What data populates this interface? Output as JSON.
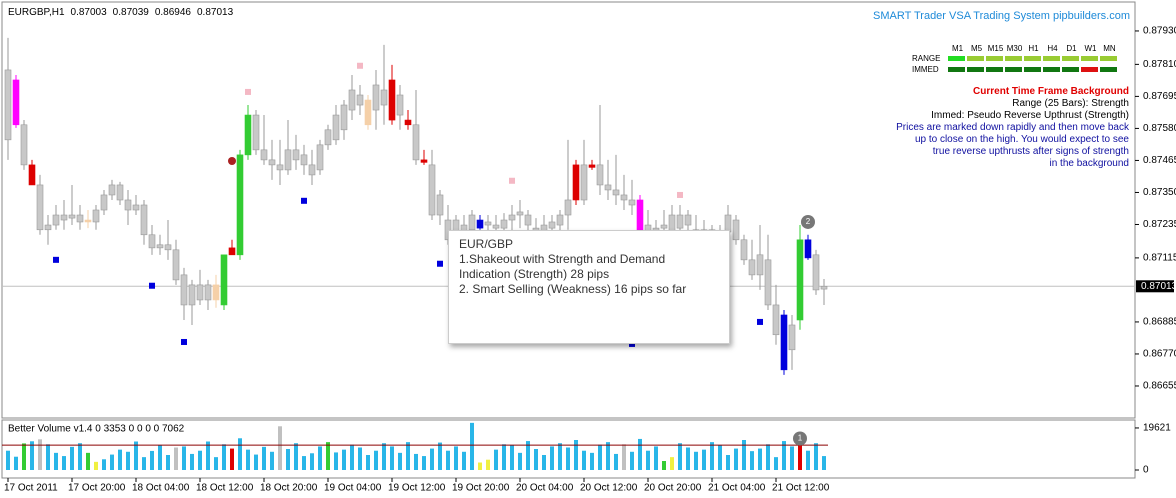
{
  "chart_data": [
    {
      "type": "candlestick",
      "title": "EURGBP,H1",
      "categories": [
        "17 Oct 2011",
        null,
        null,
        null,
        null,
        null,
        null,
        null,
        "17 Oct 20:00",
        null,
        null,
        null,
        null,
        null,
        null,
        null,
        "18 Oct 04:00",
        null,
        null,
        null,
        null,
        null,
        null,
        null,
        "18 Oct 12:00",
        null,
        null,
        null,
        null,
        null,
        null,
        null,
        "18 Oct 20:00",
        null,
        null,
        null,
        null,
        null,
        null,
        null,
        "19 Oct 04:00",
        null,
        null,
        null,
        null,
        null,
        null,
        null,
        "19 Oct 12:00",
        null,
        null,
        null,
        null,
        null,
        null,
        null,
        "19 Oct 20:00",
        null,
        null,
        null,
        null,
        null,
        null,
        null,
        "20 Oct 04:00",
        null,
        null,
        null,
        null,
        null,
        null,
        null,
        "20 Oct 12:00",
        null,
        null,
        null,
        null,
        null,
        null,
        null,
        "20 Oct 20:00",
        null,
        null,
        null,
        null,
        null,
        null,
        null,
        "21 Oct 04:00",
        null,
        null,
        null,
        null,
        null,
        null,
        null,
        "21 Oct 12:00",
        null,
        null,
        null,
        null,
        null,
        null
      ],
      "candles": [
        [
          0.8779,
          0.87905,
          0.87467,
          0.87539
        ],
        [
          0.87754,
          0.87772,
          0.87582,
          0.87593
        ],
        [
          0.87593,
          0.8761,
          0.87431,
          0.87449
        ],
        [
          0.87449,
          0.87467,
          0.87377,
          0.87377
        ],
        [
          0.87377,
          0.87413,
          0.87198,
          0.87216
        ],
        [
          0.87216,
          0.87269,
          0.87162,
          0.87233
        ],
        [
          0.87233,
          0.87305,
          0.87216,
          0.87269
        ],
        [
          0.87269,
          0.87323,
          0.87216,
          0.87251
        ],
        [
          0.87258,
          0.87377,
          0.87233,
          0.87269
        ],
        [
          0.87269,
          0.87305,
          0.87216,
          0.87244
        ],
        [
          0.87251,
          0.87287,
          0.87222,
          0.87244
        ],
        [
          0.87244,
          0.87305,
          0.87216,
          0.87287
        ],
        [
          0.87287,
          0.87359,
          0.87269,
          0.87341
        ],
        [
          0.87341,
          0.87395,
          0.87323,
          0.87377
        ],
        [
          0.87377,
          0.87388,
          0.87305,
          0.87323
        ],
        [
          0.87323,
          0.87359,
          0.87233,
          0.87287
        ],
        [
          0.87287,
          0.87341,
          0.87269,
          0.87305
        ],
        [
          0.87305,
          0.87323,
          0.87162,
          0.87198
        ],
        [
          0.87198,
          0.87233,
          0.87126,
          0.87151
        ],
        [
          0.87151,
          0.87198,
          0.87126,
          0.87162
        ],
        [
          0.87162,
          0.87251,
          0.87108,
          0.87144
        ],
        [
          0.87144,
          0.8718,
          0.87018,
          0.87036
        ],
        [
          0.87054,
          0.87079,
          0.86892,
          0.86946
        ],
        [
          0.86946,
          0.87036,
          0.86874,
          0.87018
        ],
        [
          0.87018,
          0.87072,
          0.86946,
          0.86964
        ],
        [
          0.86964,
          0.87036,
          0.86928,
          0.87018
        ],
        [
          0.87018,
          0.87054,
          0.86936,
          0.86964
        ],
        [
          0.86946,
          0.87126,
          0.86928,
          0.87126
        ],
        [
          0.87151,
          0.8718,
          0.87126,
          0.87126
        ],
        [
          0.87126,
          0.87503,
          0.87108,
          0.87485
        ],
        [
          0.87485,
          0.87664,
          0.87467,
          0.87628
        ],
        [
          0.87628,
          0.87646,
          0.87485,
          0.87503
        ],
        [
          0.87503,
          0.87628,
          0.87449,
          0.87467
        ],
        [
          0.87467,
          0.87539,
          0.87395,
          0.87449
        ],
        [
          0.87449,
          0.87539,
          0.87377,
          0.87431
        ],
        [
          0.87431,
          0.8761,
          0.87413,
          0.87503
        ],
        [
          0.87503,
          0.87557,
          0.87431,
          0.87467
        ],
        [
          0.87449,
          0.87521,
          0.87413,
          0.87485
        ],
        [
          0.87449,
          0.87503,
          0.87377,
          0.87413
        ],
        [
          0.87431,
          0.87539,
          0.87413,
          0.87521
        ],
        [
          0.87521,
          0.87593,
          0.87503,
          0.87575
        ],
        [
          0.87539,
          0.87664,
          0.87521,
          0.87628
        ],
        [
          0.87575,
          0.87682,
          0.87539,
          0.87664
        ],
        [
          0.87646,
          0.87772,
          0.8761,
          0.87718
        ],
        [
          0.877,
          0.87736,
          0.87628,
          0.87664
        ],
        [
          0.87682,
          0.877,
          0.87575,
          0.87593
        ],
        [
          0.87646,
          0.8779,
          0.87575,
          0.87736
        ],
        [
          0.87718,
          0.8788,
          0.87593,
          0.87664
        ],
        [
          0.87754,
          0.87808,
          0.87593,
          0.8761
        ],
        [
          0.87628,
          0.87736,
          0.87575,
          0.877
        ],
        [
          0.8761,
          0.87646,
          0.87575,
          0.87593
        ],
        [
          0.87593,
          0.87718,
          0.87449,
          0.87467
        ],
        [
          0.87467,
          0.87503,
          0.87449,
          0.87458
        ],
        [
          0.87449,
          0.87503,
          0.87251,
          0.87269
        ],
        [
          0.87269,
          0.87359,
          0.87233,
          0.87341
        ],
        [
          0.87251,
          0.87305,
          0.87162,
          0.8718
        ],
        [
          0.8718,
          0.87269,
          0.87162,
          0.87251
        ],
        [
          0.87233,
          0.87269,
          0.87162,
          0.8718
        ],
        [
          0.87216,
          0.87287,
          0.87162,
          0.87269
        ],
        [
          0.87251,
          0.87269,
          0.87216,
          0.87222
        ],
        [
          0.87233,
          0.87269,
          0.87198,
          0.87244
        ],
        [
          0.87222,
          0.87269,
          0.8718,
          0.87233
        ],
        [
          0.87222,
          0.87276,
          0.8718,
          0.87251
        ],
        [
          0.87251,
          0.87305,
          0.87198,
          0.87269
        ],
        [
          0.87269,
          0.87323,
          0.87222,
          0.8728
        ],
        [
          0.87269,
          0.87287,
          0.87198,
          0.87233
        ],
        [
          0.87222,
          0.87258,
          0.8718,
          0.87208
        ],
        [
          0.87233,
          0.87269,
          0.8718,
          0.87208
        ],
        [
          0.87222,
          0.87269,
          0.87187,
          0.87244
        ],
        [
          0.87233,
          0.87287,
          0.87198,
          0.87269
        ],
        [
          0.87269,
          0.87539,
          0.87216,
          0.87323
        ],
        [
          0.87449,
          0.87467,
          0.87305,
          0.87323
        ],
        [
          0.87323,
          0.87539,
          0.87305,
          0.87449
        ],
        [
          0.87449,
          0.87467,
          0.87431,
          0.8744
        ],
        [
          0.87449,
          0.87664,
          0.87341,
          0.87377
        ],
        [
          0.87377,
          0.87467,
          0.87323,
          0.87359
        ],
        [
          0.87359,
          0.87485,
          0.87305,
          0.87341
        ],
        [
          0.87341,
          0.87413,
          0.87287,
          0.87323
        ],
        [
          0.87323,
          0.87395,
          0.87269,
          0.87305
        ],
        [
          0.87323,
          0.87341,
          0.87198,
          0.87216
        ],
        [
          0.87233,
          0.87287,
          0.8718,
          0.87198
        ],
        [
          0.87198,
          0.87251,
          0.87144,
          0.87222
        ],
        [
          0.87222,
          0.87287,
          0.8718,
          0.87233
        ],
        [
          0.87208,
          0.87305,
          0.8718,
          0.87269
        ],
        [
          0.87269,
          0.87305,
          0.87198,
          0.87222
        ],
        [
          0.87233,
          0.87287,
          0.8718,
          0.87269
        ],
        [
          0.87216,
          0.87269,
          0.87144,
          0.8718
        ],
        [
          0.8718,
          0.87251,
          0.87126,
          0.87216
        ],
        [
          0.87216,
          0.87233,
          0.87108,
          0.87126
        ],
        [
          0.87126,
          0.87233,
          0.87101,
          0.87198
        ],
        [
          0.87208,
          0.87305,
          0.8718,
          0.87269
        ],
        [
          0.87251,
          0.87269,
          0.87162,
          0.8718
        ],
        [
          0.8718,
          0.87198,
          0.8709,
          0.87108
        ],
        [
          0.87108,
          0.8718,
          0.87036,
          0.87054
        ],
        [
          0.87054,
          0.87233,
          0.87,
          0.87126
        ],
        [
          0.87108,
          0.87198,
          0.86928,
          0.86946
        ],
        [
          0.86946,
          0.87018,
          0.86803,
          0.86839
        ],
        [
          0.8691,
          0.86928,
          0.86695,
          0.86713
        ],
        [
          0.86785,
          0.8691,
          0.86713,
          0.86874
        ],
        [
          0.86892,
          0.87233,
          0.86857,
          0.8718
        ],
        [
          0.8718,
          0.87198,
          0.87108,
          0.87115
        ],
        [
          0.87126,
          0.87144,
          0.86982,
          0.87
        ],
        [
          0.87003,
          0.87039,
          0.86946,
          0.87013
        ]
      ],
      "color": "#c8c8c8",
      "highlights": {
        "1": "#ff00ff",
        "3": "#dd0000",
        "10": "#f5d0a8",
        "26": "#f5d0a8",
        "27": "#33cc33",
        "28": "#dd0000",
        "29": "#33cc33",
        "30": "#33cc33",
        "45": "#f5d0a8",
        "48": "#dd0000",
        "50": "#dd0000",
        "52": "#dd0000",
        "59": "#0000dd",
        "71": "#dd0000",
        "73": "#dd0000",
        "79": "#ff00ff",
        "97": "#0000dd",
        "99": "#33cc33",
        "100": "#0000dd"
      },
      "ylim": [
        0.8654,
        0.88034
      ],
      "yticks": [
        {
          "value": 0.8793,
          "label": "0.87930"
        },
        {
          "value": 0.8781,
          "label": "0.87810"
        },
        {
          "value": 0.87695,
          "label": "0.87695"
        },
        {
          "value": 0.8758,
          "label": "0.87580"
        },
        {
          "value": 0.87465,
          "label": "0.87465"
        },
        {
          "value": 0.8735,
          "label": "0.87350"
        },
        {
          "value": 0.87235,
          "label": "0.87235"
        },
        {
          "value": 0.87115,
          "label": "0.87115"
        },
        {
          "value": 0.86885,
          "label": "0.86885"
        },
        {
          "value": 0.8677,
          "label": "0.86770"
        },
        {
          "value": 0.86655,
          "label": "0.86655"
        }
      ],
      "current_price": {
        "value": 0.87013,
        "label": "0.87013"
      },
      "markers": [
        {
          "at": 6,
          "value": 0.87108,
          "color": "#0000dd"
        },
        {
          "at": 18,
          "value": 0.87015,
          "color": "#0000dd"
        },
        {
          "at": 22,
          "value": 0.86813,
          "color": "#0000dd"
        },
        {
          "at": 37,
          "value": 0.8732,
          "color": "#0000dd"
        },
        {
          "at": 54,
          "value": 0.87094,
          "color": "#0000dd"
        },
        {
          "at": 78,
          "value": 0.86806,
          "color": "#0000dd"
        },
        {
          "at": 94,
          "value": 0.86885,
          "color": "#0000dd"
        },
        {
          "at": 30,
          "value": 0.87711,
          "color": "#f4b8c4"
        },
        {
          "at": 44,
          "value": 0.87805,
          "color": "#f4b8c4"
        },
        {
          "at": 63,
          "value": 0.87392,
          "color": "#f4b8c4"
        },
        {
          "at": 84,
          "value": 0.87341,
          "color": "#f4b8c4"
        },
        {
          "at": 28,
          "value": 0.87463,
          "color": "#aa2222",
          "shape": "circle"
        }
      ],
      "annotations": [
        {
          "at": 100,
          "value": 0.87244,
          "label": "2"
        }
      ]
    },
    {
      "type": "bar",
      "title": "Better Volume v1.4 0 3353 0 0 0 0 7062",
      "values": [
        9000,
        6200,
        12400,
        13400,
        14300,
        12000,
        8000,
        6500,
        10800,
        12500,
        8000,
        3800,
        5000,
        7200,
        9500,
        8500,
        13300,
        6000,
        8900,
        11500,
        7000,
        10500,
        11000,
        7500,
        9000,
        13300,
        6000,
        12000,
        10000,
        14800,
        9500,
        7200,
        10800,
        8500,
        20400,
        9800,
        12500,
        6500,
        7800,
        11000,
        13000,
        8200,
        9500,
        11800,
        10500,
        7000,
        9000,
        12500,
        11000,
        8000,
        13000,
        7500,
        6500,
        10000,
        12800,
        9000,
        11000,
        8500,
        22000,
        3500,
        4800,
        9500,
        12000,
        11500,
        8000,
        13500,
        9800,
        7000,
        11000,
        12500,
        10500,
        14000,
        9000,
        8000,
        11800,
        13000,
        7500,
        12000,
        8500,
        14500,
        9000,
        11000,
        4200,
        6000,
        12500,
        10500,
        8500,
        9500,
        13000,
        11500,
        7000,
        10000,
        14000,
        8800,
        10000,
        12000,
        6000,
        13500,
        11000,
        14000,
        9000,
        12500,
        6500
      ],
      "color": "#29b6e8",
      "highlights": {
        "2": "#33cc33",
        "4": "#c0c0c0",
        "10": "#33cc33",
        "11": "#f0f040",
        "21": "#c0c0c0",
        "28": "#dd0000",
        "34": "#c0c0c0",
        "40": "#33cc33",
        "59": "#f0f040",
        "60": "#f0f040",
        "77": "#c0c0c0",
        "82": "#33cc33",
        "83": "#f0f040",
        "99": "#dd0000"
      },
      "ylim": [
        0,
        22400
      ],
      "yticks": [
        0,
        19621
      ],
      "average": 11600,
      "average_color": "#8b0000",
      "annotations": [
        {
          "at": 99,
          "value": 14700,
          "label": "1"
        }
      ]
    }
  ],
  "header": {
    "site": "SMART Trader VSA Trading System pipbuilders.com"
  },
  "indicator_panel": {
    "timeframes": [
      "M1",
      "M5",
      "M15",
      "M30",
      "H1",
      "H4",
      "D1",
      "W1",
      "MN"
    ],
    "rows": [
      {
        "label": "RANGE",
        "colors": [
          "#22dd22",
          "#99cc33",
          "#99cc33",
          "#99cc33",
          "#99cc33",
          "#99cc33",
          "#99cc33",
          "#99cc33",
          "#99cc33"
        ]
      },
      {
        "label": "IMMED",
        "colors": [
          "#117711",
          "#117711",
          "#117711",
          "#117711",
          "#117711",
          "#117711",
          "#117711",
          "#dd1111",
          "#117711"
        ]
      }
    ],
    "heading": "Current Time Frame Background",
    "range": "Range (25 Bars): Strength",
    "immed": "Immed: Pseudo Reverse Upthrust (Strength)",
    "description": [
      "Prices are marked down rapidly and then move back",
      "up to close on the high. You would expect to see",
      "true reverse upthrusts after signs of strength",
      "in the background"
    ]
  },
  "tooltip": {
    "lines": [
      "EUR/GBP",
      "1.Shakeout with Strength and Demand",
      "Indication (Strength) 28 pips",
      "2. Smart Selling (Weakness) 16 pips so far"
    ]
  }
}
